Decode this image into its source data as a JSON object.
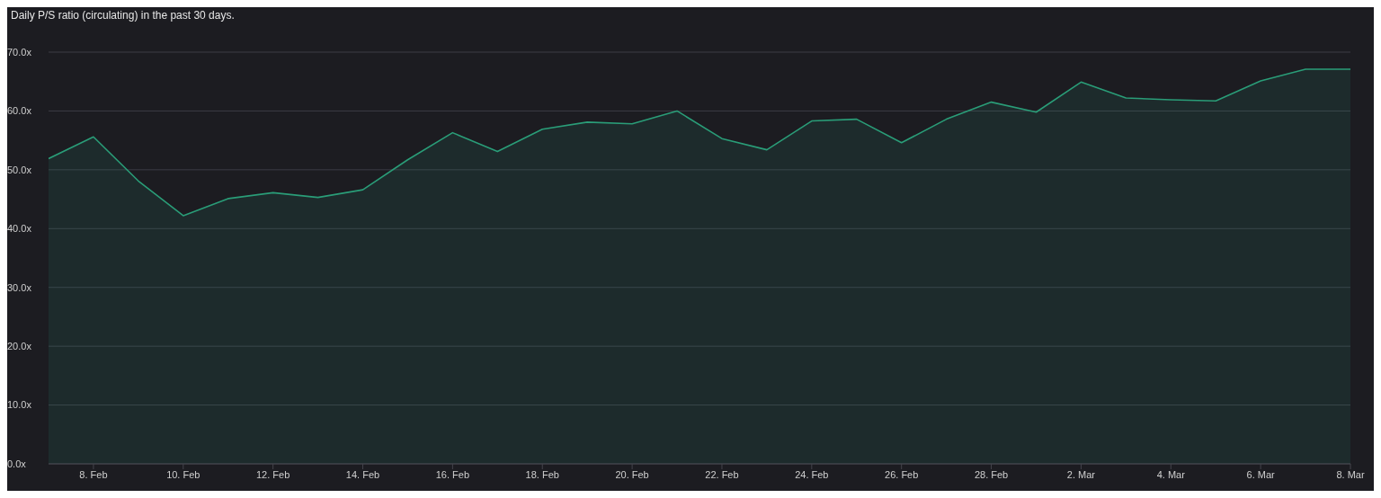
{
  "chart_data": {
    "type": "area",
    "title": "Daily P/S ratio (circulating) in the past 30 days.",
    "x": [
      "--02-07",
      "--02-08",
      "--02-09",
      "--02-10",
      "--02-11",
      "--02-12",
      "--02-13",
      "--02-14",
      "--02-15",
      "--02-16",
      "--02-17",
      "--02-18",
      "--02-19",
      "--02-20",
      "--02-21",
      "--02-22",
      "--02-23",
      "--02-24",
      "--02-25",
      "--02-26",
      "--02-27",
      "--02-28",
      "--03-01",
      "--03-02",
      "--03-03",
      "--03-04",
      "--03-05",
      "--03-06",
      "--03-07",
      "--03-08"
    ],
    "series": [
      {
        "color": "#2a9d78",
        "values": [
          51.9,
          55.6,
          48.1,
          42.2,
          45.1,
          46.1,
          45.3,
          46.6,
          51.7,
          56.3,
          53.1,
          56.9,
          58.1,
          57.8,
          60.0,
          55.3,
          53.4,
          58.3,
          58.6,
          54.6,
          58.6,
          61.5,
          59.8,
          64.9,
          62.2,
          61.9,
          61.7,
          65.1,
          67.1,
          67.1
        ]
      }
    ],
    "xlim": [
      "--02-07",
      "--03-08"
    ],
    "xticks": [
      {
        "value": "--02-08",
        "label": "8. Feb"
      },
      {
        "value": "--02-10",
        "label": "10. Feb"
      },
      {
        "value": "--02-12",
        "label": "12. Feb"
      },
      {
        "value": "--02-14",
        "label": "14. Feb"
      },
      {
        "value": "--02-16",
        "label": "16. Feb"
      },
      {
        "value": "--02-18",
        "label": "18. Feb"
      },
      {
        "value": "--02-20",
        "label": "20. Feb"
      },
      {
        "value": "--02-22",
        "label": "22. Feb"
      },
      {
        "value": "--02-24",
        "label": "24. Feb"
      },
      {
        "value": "--02-26",
        "label": "26. Feb"
      },
      {
        "value": "--02-28",
        "label": "28. Feb"
      },
      {
        "value": "--03-02",
        "label": "2. Mar"
      },
      {
        "value": "--03-04",
        "label": "4. Mar"
      },
      {
        "value": "--03-06",
        "label": "6. Mar"
      },
      {
        "value": "--03-08",
        "label": "8. Mar"
      }
    ],
    "ylim": [
      0,
      70
    ],
    "yticks": [
      {
        "value": 0,
        "label": "0.0x"
      },
      {
        "value": 10,
        "label": "10.0x"
      },
      {
        "value": 20,
        "label": "20.0x"
      },
      {
        "value": 30,
        "label": "30.0x"
      },
      {
        "value": 40,
        "label": "40.0x"
      },
      {
        "value": 50,
        "label": "50.0x"
      },
      {
        "value": 60,
        "label": "60.0x"
      },
      {
        "value": 70,
        "label": "70.0x"
      }
    ],
    "grid": "y",
    "legend": false,
    "marker": "none",
    "line_style": "solid"
  }
}
